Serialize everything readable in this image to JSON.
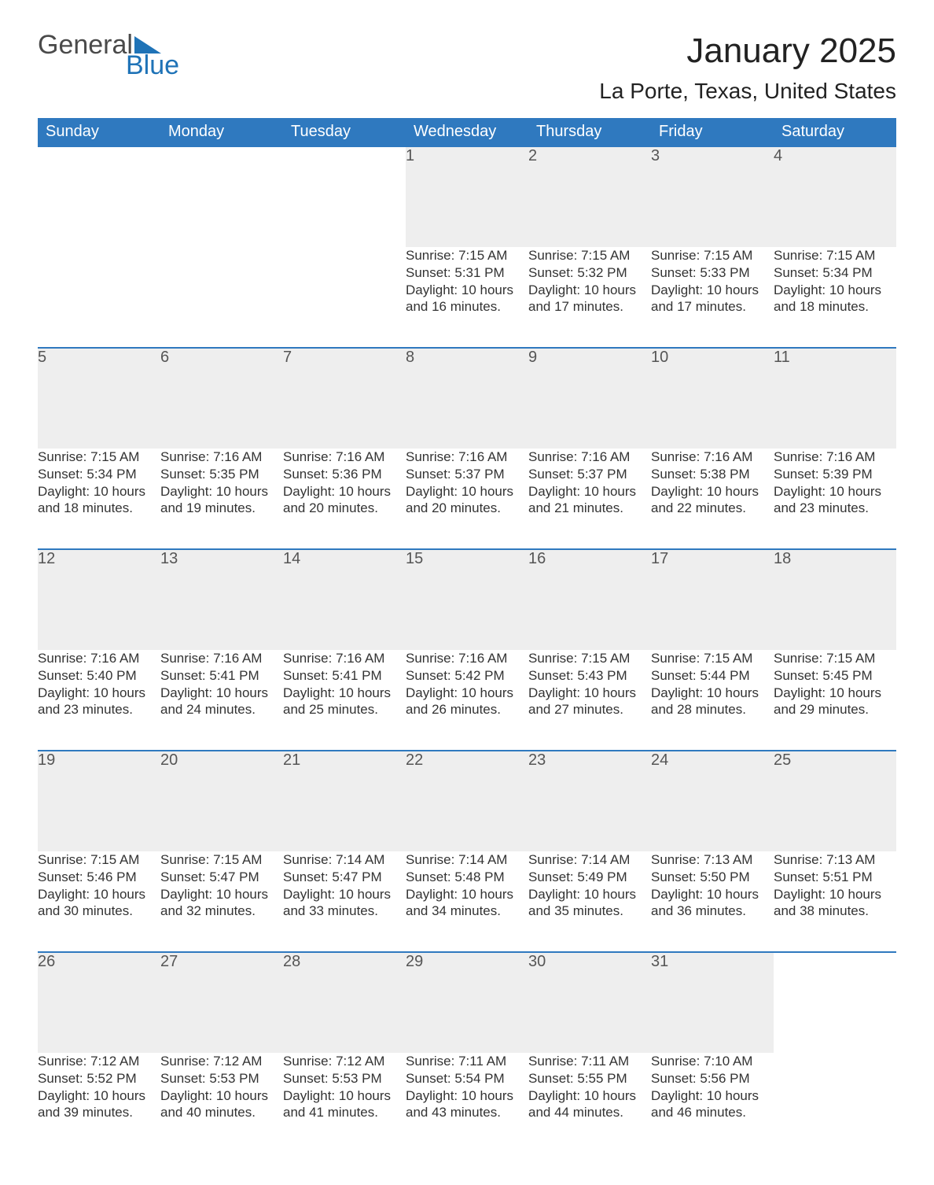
{
  "logo": {
    "word1": "General",
    "word2": "Blue"
  },
  "title": "January 2025",
  "location": "La Porte, Texas, United States",
  "colors": {
    "header_bg": "#2f79bf",
    "header_text": "#ffffff",
    "daynum_bg": "#eeeeee",
    "rule": "#2f79bf",
    "text": "#333333",
    "logo_accent": "#1f73b7"
  },
  "weekdays": [
    "Sunday",
    "Monday",
    "Tuesday",
    "Wednesday",
    "Thursday",
    "Friday",
    "Saturday"
  ],
  "weeks": [
    [
      null,
      null,
      null,
      {
        "n": "1",
        "sunrise": "7:15 AM",
        "sunset": "5:31 PM",
        "daylight": "10 hours and 16 minutes."
      },
      {
        "n": "2",
        "sunrise": "7:15 AM",
        "sunset": "5:32 PM",
        "daylight": "10 hours and 17 minutes."
      },
      {
        "n": "3",
        "sunrise": "7:15 AM",
        "sunset": "5:33 PM",
        "daylight": "10 hours and 17 minutes."
      },
      {
        "n": "4",
        "sunrise": "7:15 AM",
        "sunset": "5:34 PM",
        "daylight": "10 hours and 18 minutes."
      }
    ],
    [
      {
        "n": "5",
        "sunrise": "7:15 AM",
        "sunset": "5:34 PM",
        "daylight": "10 hours and 18 minutes."
      },
      {
        "n": "6",
        "sunrise": "7:16 AM",
        "sunset": "5:35 PM",
        "daylight": "10 hours and 19 minutes."
      },
      {
        "n": "7",
        "sunrise": "7:16 AM",
        "sunset": "5:36 PM",
        "daylight": "10 hours and 20 minutes."
      },
      {
        "n": "8",
        "sunrise": "7:16 AM",
        "sunset": "5:37 PM",
        "daylight": "10 hours and 20 minutes."
      },
      {
        "n": "9",
        "sunrise": "7:16 AM",
        "sunset": "5:37 PM",
        "daylight": "10 hours and 21 minutes."
      },
      {
        "n": "10",
        "sunrise": "7:16 AM",
        "sunset": "5:38 PM",
        "daylight": "10 hours and 22 minutes."
      },
      {
        "n": "11",
        "sunrise": "7:16 AM",
        "sunset": "5:39 PM",
        "daylight": "10 hours and 23 minutes."
      }
    ],
    [
      {
        "n": "12",
        "sunrise": "7:16 AM",
        "sunset": "5:40 PM",
        "daylight": "10 hours and 23 minutes."
      },
      {
        "n": "13",
        "sunrise": "7:16 AM",
        "sunset": "5:41 PM",
        "daylight": "10 hours and 24 minutes."
      },
      {
        "n": "14",
        "sunrise": "7:16 AM",
        "sunset": "5:41 PM",
        "daylight": "10 hours and 25 minutes."
      },
      {
        "n": "15",
        "sunrise": "7:16 AM",
        "sunset": "5:42 PM",
        "daylight": "10 hours and 26 minutes."
      },
      {
        "n": "16",
        "sunrise": "7:15 AM",
        "sunset": "5:43 PM",
        "daylight": "10 hours and 27 minutes."
      },
      {
        "n": "17",
        "sunrise": "7:15 AM",
        "sunset": "5:44 PM",
        "daylight": "10 hours and 28 minutes."
      },
      {
        "n": "18",
        "sunrise": "7:15 AM",
        "sunset": "5:45 PM",
        "daylight": "10 hours and 29 minutes."
      }
    ],
    [
      {
        "n": "19",
        "sunrise": "7:15 AM",
        "sunset": "5:46 PM",
        "daylight": "10 hours and 30 minutes."
      },
      {
        "n": "20",
        "sunrise": "7:15 AM",
        "sunset": "5:47 PM",
        "daylight": "10 hours and 32 minutes."
      },
      {
        "n": "21",
        "sunrise": "7:14 AM",
        "sunset": "5:47 PM",
        "daylight": "10 hours and 33 minutes."
      },
      {
        "n": "22",
        "sunrise": "7:14 AM",
        "sunset": "5:48 PM",
        "daylight": "10 hours and 34 minutes."
      },
      {
        "n": "23",
        "sunrise": "7:14 AM",
        "sunset": "5:49 PM",
        "daylight": "10 hours and 35 minutes."
      },
      {
        "n": "24",
        "sunrise": "7:13 AM",
        "sunset": "5:50 PM",
        "daylight": "10 hours and 36 minutes."
      },
      {
        "n": "25",
        "sunrise": "7:13 AM",
        "sunset": "5:51 PM",
        "daylight": "10 hours and 38 minutes."
      }
    ],
    [
      {
        "n": "26",
        "sunrise": "7:12 AM",
        "sunset": "5:52 PM",
        "daylight": "10 hours and 39 minutes."
      },
      {
        "n": "27",
        "sunrise": "7:12 AM",
        "sunset": "5:53 PM",
        "daylight": "10 hours and 40 minutes."
      },
      {
        "n": "28",
        "sunrise": "7:12 AM",
        "sunset": "5:53 PM",
        "daylight": "10 hours and 41 minutes."
      },
      {
        "n": "29",
        "sunrise": "7:11 AM",
        "sunset": "5:54 PM",
        "daylight": "10 hours and 43 minutes."
      },
      {
        "n": "30",
        "sunrise": "7:11 AM",
        "sunset": "5:55 PM",
        "daylight": "10 hours and 44 minutes."
      },
      {
        "n": "31",
        "sunrise": "7:10 AM",
        "sunset": "5:56 PM",
        "daylight": "10 hours and 46 minutes."
      },
      null
    ]
  ],
  "labels": {
    "sunrise": "Sunrise: ",
    "sunset": "Sunset: ",
    "daylight": "Daylight: "
  }
}
